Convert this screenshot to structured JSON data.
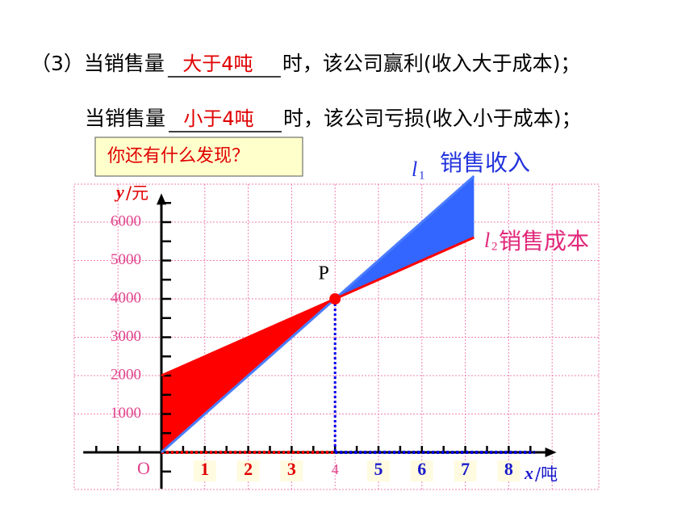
{
  "lines": [
    {
      "prefix": "（3）当销售量",
      "answer": "大于4吨",
      "suffix": "时，该公司赢利(收入大于成本)；"
    },
    {
      "prefix": "当销售量",
      "answer": "小于4吨",
      "suffix": "时，该公司亏损(收入小于成本)；"
    }
  ],
  "prompt": "你还有什么发现？",
  "chart_data": {
    "type": "line",
    "x": [
      0,
      4,
      7.2
    ],
    "series": [
      {
        "name": "销售收入",
        "symbol": "l",
        "index": "1",
        "color": "#3366ff",
        "values": [
          0,
          4000,
          7200
        ]
      },
      {
        "name": "销售成本",
        "symbol": "l",
        "index": "2",
        "color": "#ff0000",
        "values": [
          2000,
          4000,
          5600
        ]
      }
    ],
    "xlim": [
      -1.8,
      9.1
    ],
    "ylim": [
      -950,
      6750
    ],
    "xticks": [
      1,
      2,
      3,
      4,
      5,
      6,
      7,
      8
    ],
    "yticks": [
      1000,
      2000,
      3000,
      4000,
      5000,
      6000
    ],
    "x_var": "x",
    "x_unit": "/吨",
    "y_var": "y",
    "y_unit": "/元",
    "origin": "O",
    "point": {
      "label": "P",
      "x": 4,
      "y": 4000
    },
    "grid": true
  }
}
